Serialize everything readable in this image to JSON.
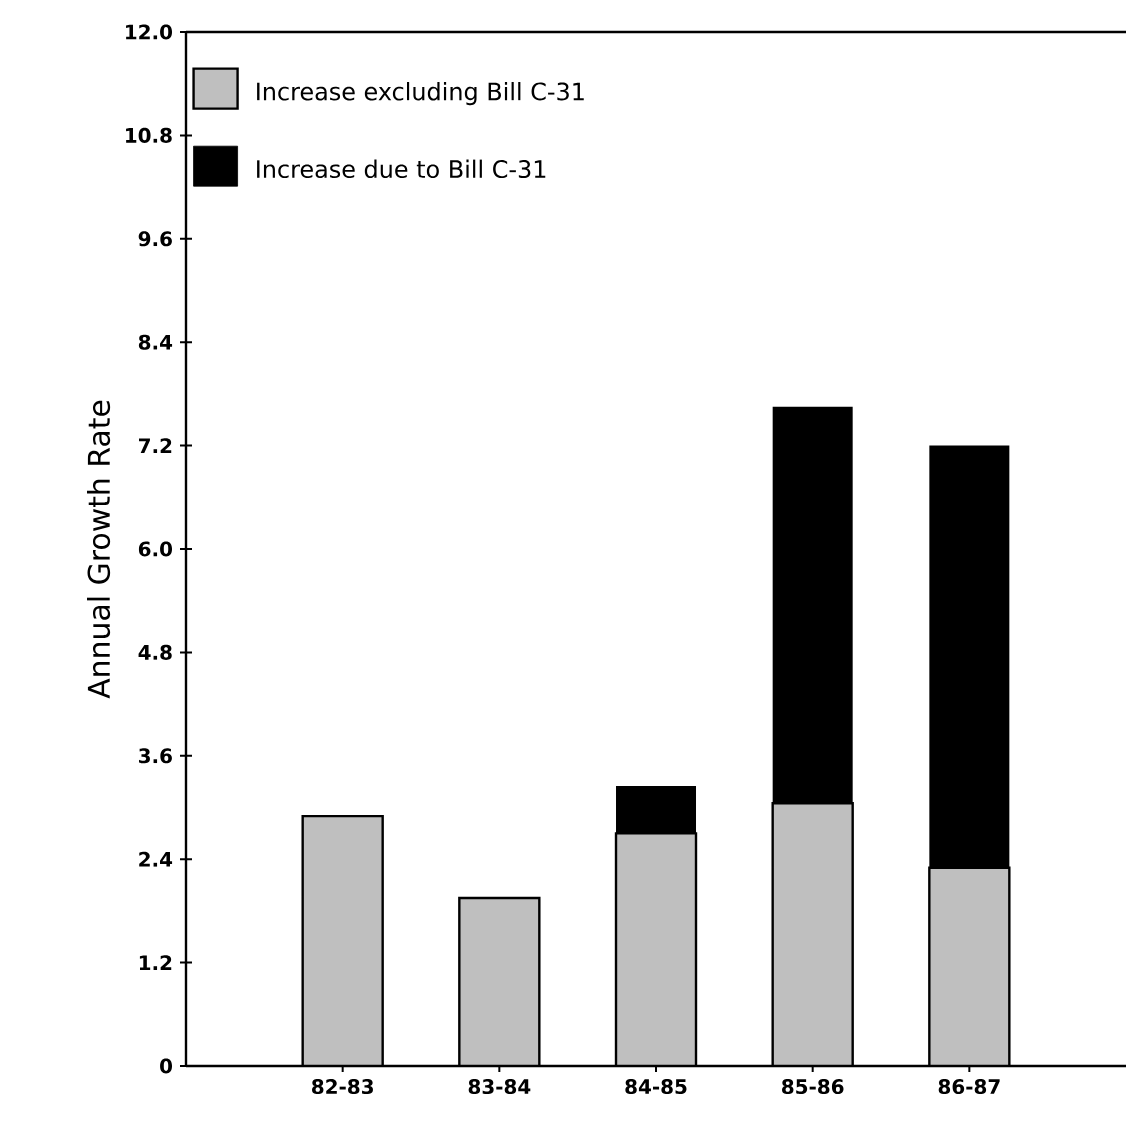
{
  "chart_data": {
    "type": "bar",
    "stacked": true,
    "ylabel": "Annual Growth Rate",
    "categories": [
      "82-83",
      "83-84",
      "84-85",
      "85-86",
      "86-87"
    ],
    "series": [
      {
        "name": "Increase excluding Bill C-31",
        "color": "#bfbfbf",
        "values": [
          2.9,
          1.95,
          2.7,
          3.05,
          2.3
        ]
      },
      {
        "name": "Increase due to Bill C-31",
        "color": "#000000",
        "values": [
          0,
          0,
          0.55,
          4.6,
          4.9
        ]
      }
    ],
    "ylim": [
      0,
      12
    ],
    "yticks": [
      0,
      1.2,
      2.4,
      3.6,
      4.8,
      {
        "value": 6,
        "label": "6.0"
      },
      7.2,
      8.4,
      9.6,
      10.8,
      {
        "value": 12,
        "label": "12.0"
      }
    ],
    "grid": false,
    "legend": "top left"
  }
}
